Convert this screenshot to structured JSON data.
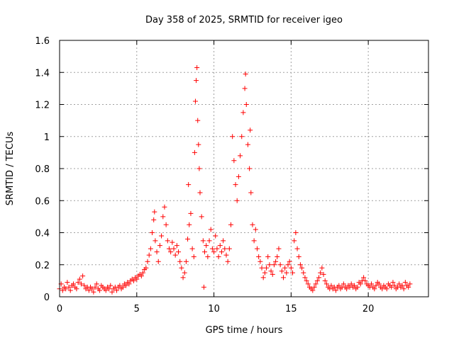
{
  "chart_data": {
    "type": "scatter",
    "title": "Day 358 of 2025, SRMTID for receiver igeo",
    "xlabel": "GPS time / hours",
    "ylabel": "SRMTID / TECUs",
    "xlim": [
      0,
      23.9
    ],
    "ylim": [
      0,
      1.6
    ],
    "xticks": [
      0,
      5,
      10,
      15,
      20
    ],
    "xtick_labels": [
      "0",
      "5",
      "10",
      "15",
      "20"
    ],
    "yticks": [
      0,
      0.2,
      0.4,
      0.6,
      0.8,
      1.0,
      1.2,
      1.4,
      1.6
    ],
    "ytick_labels": [
      "0",
      "0.2",
      "0.4",
      "0.6",
      "0.8",
      "1",
      "1.2",
      "1.4",
      "1.6"
    ],
    "grid": true,
    "marker": "+",
    "series": [
      {
        "name": "SRMTID",
        "color": "#ff0000",
        "points": [
          [
            0.0,
            0.05
          ],
          [
            0.1,
            0.08
          ],
          [
            0.2,
            0.04
          ],
          [
            0.3,
            0.06
          ],
          [
            0.4,
            0.05
          ],
          [
            0.5,
            0.09
          ],
          [
            0.6,
            0.06
          ],
          [
            0.7,
            0.04
          ],
          [
            0.8,
            0.07
          ],
          [
            0.9,
            0.08
          ],
          [
            1.0,
            0.06
          ],
          [
            1.1,
            0.05
          ],
          [
            1.2,
            0.09
          ],
          [
            1.3,
            0.11
          ],
          [
            1.4,
            0.08
          ],
          [
            1.5,
            0.13
          ],
          [
            1.6,
            0.07
          ],
          [
            1.7,
            0.05
          ],
          [
            1.8,
            0.06
          ],
          [
            1.9,
            0.04
          ],
          [
            2.0,
            0.06
          ],
          [
            2.1,
            0.05
          ],
          [
            2.2,
            0.03
          ],
          [
            2.3,
            0.06
          ],
          [
            2.4,
            0.08
          ],
          [
            2.5,
            0.05
          ],
          [
            2.6,
            0.04
          ],
          [
            2.7,
            0.07
          ],
          [
            2.8,
            0.06
          ],
          [
            2.9,
            0.05
          ],
          [
            3.0,
            0.04
          ],
          [
            3.1,
            0.06
          ],
          [
            3.2,
            0.05
          ],
          [
            3.3,
            0.07
          ],
          [
            3.4,
            0.03
          ],
          [
            3.5,
            0.05
          ],
          [
            3.6,
            0.06
          ],
          [
            3.7,
            0.04
          ],
          [
            3.8,
            0.06
          ],
          [
            3.9,
            0.07
          ],
          [
            4.0,
            0.05
          ],
          [
            4.1,
            0.06
          ],
          [
            4.2,
            0.08
          ],
          [
            4.3,
            0.07
          ],
          [
            4.4,
            0.09
          ],
          [
            4.5,
            0.08
          ],
          [
            4.6,
            0.1
          ],
          [
            4.7,
            0.11
          ],
          [
            4.8,
            0.1
          ],
          [
            4.9,
            0.12
          ],
          [
            5.0,
            0.11
          ],
          [
            5.1,
            0.13
          ],
          [
            5.2,
            0.14
          ],
          [
            5.3,
            0.13
          ],
          [
            5.4,
            0.15
          ],
          [
            5.5,
            0.17
          ],
          [
            5.6,
            0.18
          ],
          [
            5.7,
            0.22
          ],
          [
            5.8,
            0.26
          ],
          [
            5.9,
            0.3
          ],
          [
            6.0,
            0.4
          ],
          [
            6.1,
            0.48
          ],
          [
            6.15,
            0.53
          ],
          [
            6.2,
            0.35
          ],
          [
            6.3,
            0.28
          ],
          [
            6.4,
            0.22
          ],
          [
            6.5,
            0.32
          ],
          [
            6.6,
            0.38
          ],
          [
            6.7,
            0.5
          ],
          [
            6.8,
            0.56
          ],
          [
            6.9,
            0.45
          ],
          [
            7.0,
            0.35
          ],
          [
            7.1,
            0.3
          ],
          [
            7.2,
            0.28
          ],
          [
            7.3,
            0.34
          ],
          [
            7.4,
            0.3
          ],
          [
            7.5,
            0.26
          ],
          [
            7.6,
            0.32
          ],
          [
            7.7,
            0.28
          ],
          [
            7.8,
            0.22
          ],
          [
            7.9,
            0.18
          ],
          [
            8.0,
            0.12
          ],
          [
            8.1,
            0.15
          ],
          [
            8.2,
            0.22
          ],
          [
            8.3,
            0.36
          ],
          [
            8.35,
            0.7
          ],
          [
            8.4,
            0.45
          ],
          [
            8.5,
            0.52
          ],
          [
            8.6,
            0.3
          ],
          [
            8.7,
            0.25
          ],
          [
            8.75,
            0.9
          ],
          [
            8.8,
            1.22
          ],
          [
            8.85,
            1.35
          ],
          [
            8.9,
            1.43
          ],
          [
            8.95,
            1.1
          ],
          [
            9.0,
            0.95
          ],
          [
            9.05,
            0.8
          ],
          [
            9.1,
            0.65
          ],
          [
            9.2,
            0.5
          ],
          [
            9.3,
            0.35
          ],
          [
            9.35,
            0.06
          ],
          [
            9.4,
            0.28
          ],
          [
            9.5,
            0.32
          ],
          [
            9.6,
            0.25
          ],
          [
            9.7,
            0.35
          ],
          [
            9.8,
            0.42
          ],
          [
            9.9,
            0.3
          ],
          [
            10.0,
            0.28
          ],
          [
            10.1,
            0.38
          ],
          [
            10.2,
            0.3
          ],
          [
            10.3,
            0.25
          ],
          [
            10.4,
            0.32
          ],
          [
            10.5,
            0.28
          ],
          [
            10.6,
            0.35
          ],
          [
            10.7,
            0.3
          ],
          [
            10.8,
            0.26
          ],
          [
            10.9,
            0.22
          ],
          [
            11.0,
            0.3
          ],
          [
            11.1,
            0.45
          ],
          [
            11.2,
            1.0
          ],
          [
            11.3,
            0.85
          ],
          [
            11.4,
            0.7
          ],
          [
            11.5,
            0.6
          ],
          [
            11.6,
            0.75
          ],
          [
            11.7,
            0.88
          ],
          [
            11.8,
            1.0
          ],
          [
            11.9,
            1.15
          ],
          [
            12.0,
            1.3
          ],
          [
            12.05,
            1.39
          ],
          [
            12.1,
            1.2
          ],
          [
            12.2,
            0.95
          ],
          [
            12.3,
            0.8
          ],
          [
            12.35,
            1.04
          ],
          [
            12.4,
            0.65
          ],
          [
            12.5,
            0.45
          ],
          [
            12.6,
            0.35
          ],
          [
            12.7,
            0.42
          ],
          [
            12.8,
            0.3
          ],
          [
            12.9,
            0.25
          ],
          [
            13.0,
            0.22
          ],
          [
            13.1,
            0.18
          ],
          [
            13.2,
            0.12
          ],
          [
            13.3,
            0.15
          ],
          [
            13.4,
            0.18
          ],
          [
            13.5,
            0.25
          ],
          [
            13.6,
            0.2
          ],
          [
            13.7,
            0.16
          ],
          [
            13.8,
            0.14
          ],
          [
            13.9,
            0.2
          ],
          [
            14.0,
            0.22
          ],
          [
            14.1,
            0.25
          ],
          [
            14.2,
            0.3
          ],
          [
            14.3,
            0.2
          ],
          [
            14.4,
            0.16
          ],
          [
            14.5,
            0.12
          ],
          [
            14.6,
            0.18
          ],
          [
            14.7,
            0.15
          ],
          [
            14.8,
            0.2
          ],
          [
            14.9,
            0.22
          ],
          [
            15.0,
            0.18
          ],
          [
            15.1,
            0.15
          ],
          [
            15.2,
            0.35
          ],
          [
            15.3,
            0.4
          ],
          [
            15.4,
            0.3
          ],
          [
            15.5,
            0.25
          ],
          [
            15.6,
            0.2
          ],
          [
            15.7,
            0.18
          ],
          [
            15.8,
            0.15
          ],
          [
            15.9,
            0.12
          ],
          [
            16.0,
            0.1
          ],
          [
            16.1,
            0.08
          ],
          [
            16.2,
            0.06
          ],
          [
            16.3,
            0.05
          ],
          [
            16.4,
            0.04
          ],
          [
            16.5,
            0.06
          ],
          [
            16.6,
            0.08
          ],
          [
            16.7,
            0.1
          ],
          [
            16.8,
            0.12
          ],
          [
            16.9,
            0.15
          ],
          [
            17.0,
            0.18
          ],
          [
            17.1,
            0.14
          ],
          [
            17.2,
            0.1
          ],
          [
            17.3,
            0.08
          ],
          [
            17.4,
            0.06
          ],
          [
            17.5,
            0.05
          ],
          [
            17.6,
            0.07
          ],
          [
            17.7,
            0.05
          ],
          [
            17.8,
            0.06
          ],
          [
            17.9,
            0.04
          ],
          [
            18.0,
            0.06
          ],
          [
            18.1,
            0.07
          ],
          [
            18.2,
            0.05
          ],
          [
            18.3,
            0.06
          ],
          [
            18.4,
            0.08
          ],
          [
            18.5,
            0.06
          ],
          [
            18.6,
            0.05
          ],
          [
            18.7,
            0.07
          ],
          [
            18.8,
            0.06
          ],
          [
            18.9,
            0.08
          ],
          [
            19.0,
            0.06
          ],
          [
            19.1,
            0.07
          ],
          [
            19.2,
            0.05
          ],
          [
            19.3,
            0.06
          ],
          [
            19.4,
            0.09
          ],
          [
            19.5,
            0.08
          ],
          [
            19.6,
            0.1
          ],
          [
            19.7,
            0.12
          ],
          [
            19.8,
            0.1
          ],
          [
            19.9,
            0.08
          ],
          [
            20.0,
            0.07
          ],
          [
            20.1,
            0.06
          ],
          [
            20.2,
            0.08
          ],
          [
            20.3,
            0.06
          ],
          [
            20.4,
            0.05
          ],
          [
            20.5,
            0.07
          ],
          [
            20.6,
            0.09
          ],
          [
            20.7,
            0.08
          ],
          [
            20.8,
            0.06
          ],
          [
            20.9,
            0.05
          ],
          [
            21.0,
            0.07
          ],
          [
            21.1,
            0.06
          ],
          [
            21.2,
            0.05
          ],
          [
            21.3,
            0.08
          ],
          [
            21.4,
            0.07
          ],
          [
            21.5,
            0.06
          ],
          [
            21.6,
            0.09
          ],
          [
            21.7,
            0.07
          ],
          [
            21.8,
            0.05
          ],
          [
            21.9,
            0.06
          ],
          [
            22.0,
            0.08
          ],
          [
            22.1,
            0.06
          ],
          [
            22.2,
            0.07
          ],
          [
            22.3,
            0.05
          ],
          [
            22.4,
            0.09
          ],
          [
            22.5,
            0.07
          ],
          [
            22.6,
            0.06
          ],
          [
            22.7,
            0.08
          ]
        ]
      }
    ]
  }
}
